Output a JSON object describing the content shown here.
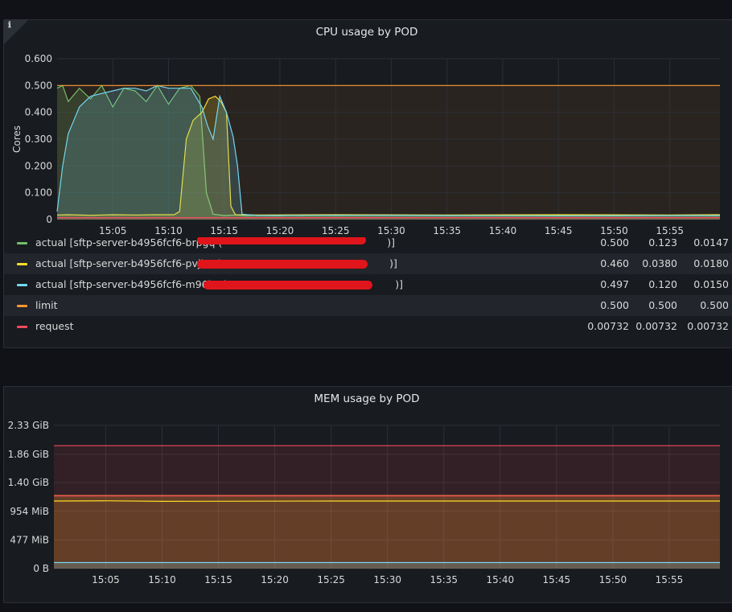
{
  "cpu_panel": {
    "title": "CPU usage by POD",
    "info_icon": "ℹ",
    "legend": [
      {
        "label": "actual [sftp-server-b4956fcf6-brpgq (",
        "suffix": ")]",
        "color": "#73bf69",
        "max": "0.500",
        "avg": "0.123",
        "current": "0.0147"
      },
      {
        "label": "actual [sftp-server-b4956fcf6-pvjb8 (",
        "suffix": ")]",
        "color": "#fade2a",
        "max": "0.460",
        "avg": "0.0380",
        "current": "0.0180"
      },
      {
        "label": "actual [sftp-server-b4956fcf6-m96kz (",
        "suffix": ")]",
        "color": "#73d7f0",
        "max": "0.497",
        "avg": "0.120",
        "current": "0.0150"
      },
      {
        "label": "limit",
        "suffix": "",
        "color": "#ff9830",
        "max": "0.500",
        "avg": "0.500",
        "current": "0.500"
      },
      {
        "label": "request",
        "suffix": "",
        "color": "#f2495c",
        "max": "0.00732",
        "avg": "0.00732",
        "current": "0.00732"
      }
    ]
  },
  "mem_panel": {
    "title": "MEM usage by POD"
  },
  "chart_data": [
    {
      "type": "line",
      "title": "CPU usage by POD",
      "ylabel": "Cores",
      "yticks": [
        "0",
        "0.100",
        "0.200",
        "0.300",
        "0.400",
        "0.500",
        "0.600"
      ],
      "xticks": [
        "15:05",
        "15:10",
        "15:15",
        "15:20",
        "15:25",
        "15:30",
        "15:35",
        "15:40",
        "15:45",
        "15:50",
        "15:55"
      ],
      "ylim": [
        0,
        0.6
      ],
      "xlim_minutes": [
        15.0,
        74.5
      ],
      "tick_start_minute": 5,
      "fill_opacity": 0.18,
      "series": [
        {
          "name": "actual [sftp-server-b4956fcf6-brpgq]",
          "color": "#73bf69",
          "x": [
            15.0,
            15.5,
            16,
            17,
            18,
            19,
            20,
            21,
            22,
            23,
            24,
            25,
            26,
            27,
            27.8,
            28.4,
            29,
            30,
            31,
            32,
            33,
            34,
            35,
            36,
            37,
            38,
            40,
            45,
            50,
            55,
            60,
            65,
            70,
            74.5
          ],
          "y": [
            0.49,
            0.5,
            0.44,
            0.49,
            0.45,
            0.5,
            0.42,
            0.49,
            0.48,
            0.44,
            0.5,
            0.43,
            0.49,
            0.5,
            0.46,
            0.1,
            0.02,
            0.015,
            0.017,
            0.014,
            0.016,
            0.015,
            0.014,
            0.016,
            0.015,
            0.016,
            0.015,
            0.017,
            0.015,
            0.016,
            0.015,
            0.014,
            0.016,
            0.015
          ]
        },
        {
          "name": "actual [sftp-server-b4956fcf6-pvjb8]",
          "color": "#fade2a",
          "x": [
            15.0,
            16,
            18,
            20,
            22,
            24,
            25.5,
            26,
            26.6,
            27.2,
            28,
            28.6,
            29.2,
            29.7,
            30.2,
            30.6,
            31,
            33,
            40,
            50,
            60,
            70,
            74.5
          ],
          "y": [
            0.017,
            0.018,
            0.016,
            0.018,
            0.017,
            0.018,
            0.018,
            0.03,
            0.3,
            0.37,
            0.4,
            0.45,
            0.46,
            0.44,
            0.4,
            0.05,
            0.018,
            0.017,
            0.018,
            0.017,
            0.018,
            0.017,
            0.018
          ]
        },
        {
          "name": "actual [sftp-server-b4956fcf6-m96kz]",
          "color": "#73d7f0",
          "x": [
            15.0,
            15.5,
            16,
            16.5,
            17,
            18,
            19,
            20,
            21,
            22,
            23,
            24,
            25,
            26,
            27,
            28,
            28.5,
            29,
            29.6,
            30.2,
            30.8,
            31.2,
            31.6,
            33,
            40,
            50,
            60,
            70,
            74.5
          ],
          "y": [
            0.03,
            0.2,
            0.32,
            0.37,
            0.42,
            0.46,
            0.47,
            0.48,
            0.49,
            0.49,
            0.48,
            0.5,
            0.49,
            0.49,
            0.49,
            0.42,
            0.35,
            0.3,
            0.46,
            0.4,
            0.31,
            0.2,
            0.02,
            0.015,
            0.016,
            0.015,
            0.014,
            0.015,
            0.015
          ]
        },
        {
          "name": "limit",
          "color": "#ff9830",
          "x": [
            15.0,
            74.5
          ],
          "y": [
            0.5,
            0.5
          ]
        },
        {
          "name": "request",
          "color": "#f2495c",
          "x": [
            15.0,
            74.5
          ],
          "y": [
            0.00732,
            0.00732
          ]
        }
      ]
    },
    {
      "type": "line",
      "title": "MEM usage by POD",
      "yticks": [
        "0 B",
        "477 MiB",
        "954 MiB",
        "1.40 GiB",
        "1.86 GiB",
        "2.33 GiB"
      ],
      "xticks": [
        "15:05",
        "15:10",
        "15:15",
        "15:20",
        "15:25",
        "15:30",
        "15:35",
        "15:40",
        "15:45",
        "15:50",
        "15:55"
      ],
      "ylim_mib": [
        0,
        2385
      ],
      "xlim_minutes": [
        15.4,
        74.5
      ],
      "tick_start_minute": 5,
      "series": [
        {
          "color": "#f2495c",
          "x": [
            15.4,
            74.5
          ],
          "y": [
            2048,
            2048
          ],
          "fill": "#f2495c",
          "fill_opacity": 0.12
        },
        {
          "color": "#ff9830",
          "x": [
            15.4,
            74.5
          ],
          "y": [
            1216,
            1216
          ],
          "fill": "#ff9830",
          "fill_opacity": 0.25
        },
        {
          "color": "#f2495c",
          "x": [
            15.4,
            74.5
          ],
          "y": [
            1210,
            1210
          ]
        },
        {
          "color": "#fade2a",
          "x": [
            15.4,
            20,
            25,
            40,
            60,
            74.5
          ],
          "y": [
            1125,
            1130,
            1120,
            1125,
            1125,
            1125
          ]
        },
        {
          "color": "#73d7f0",
          "x": [
            15.4,
            74.5
          ],
          "y": [
            100,
            100
          ],
          "fill": "#73d7f0",
          "fill_opacity": 0.2
        }
      ]
    }
  ]
}
